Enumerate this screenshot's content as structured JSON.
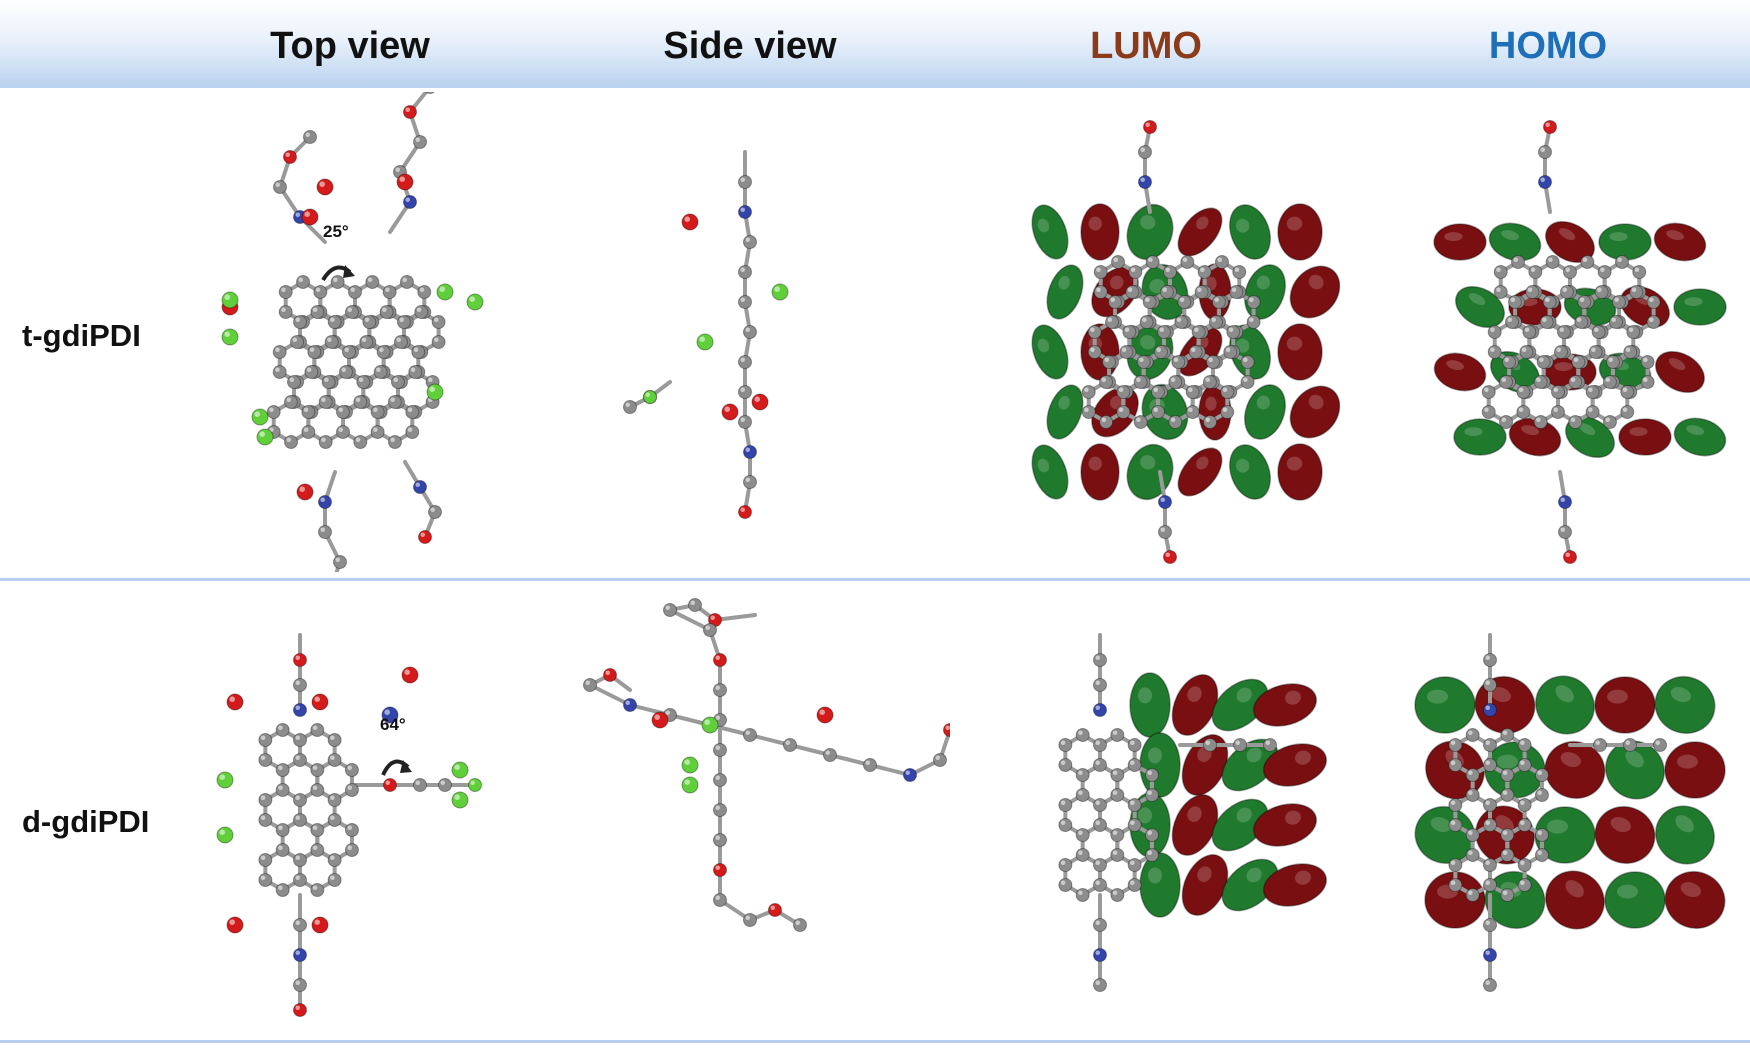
{
  "header": {
    "top_view": "Top view",
    "side_view": "Side view",
    "lumo": "LUMO",
    "homo": "HOMO"
  },
  "rows": [
    {
      "label": "t-gdiPDI",
      "angle": "25°"
    },
    {
      "label": "d-gdiPDI",
      "angle": "64°"
    }
  ],
  "colors": {
    "lumo_text": "#8b3a1a",
    "homo_text": "#1f6fb8",
    "carbon": "#8c8c8c",
    "oxygen": "#d41a1a",
    "nitrogen": "#3344aa",
    "chlorine": "#5fcf3a",
    "hydrogen": "#e6e6e6",
    "orbital_positive": "#1f7a2e",
    "orbital_negative": "#7a0f12",
    "divider": "#b7cfee"
  },
  "icons": [
    "rotation-arrow-icon"
  ]
}
